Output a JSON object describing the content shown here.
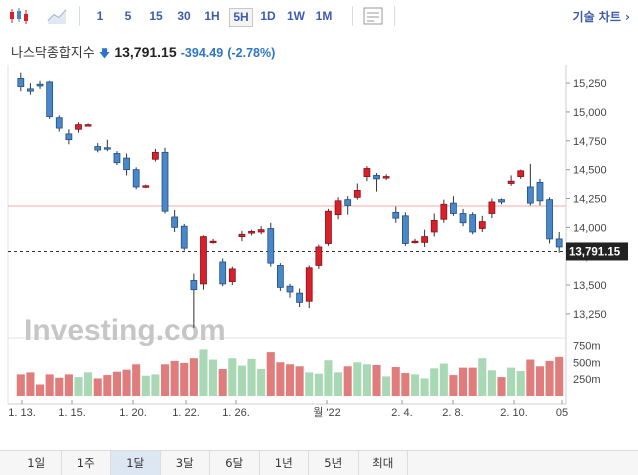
{
  "toolbar": {
    "timeframes": [
      "1",
      "5",
      "15",
      "30",
      "1H",
      "5H",
      "1D",
      "1W",
      "1M"
    ],
    "active_timeframe": "5H",
    "charts_label": "기술 차트 ›"
  },
  "header": {
    "name": "나스닥종합지수",
    "price": "13,791.15",
    "change": "-394.49",
    "change_pct": "(-2.78%)"
  },
  "watermark": "Investing.com",
  "price_axis": {
    "ticks": [
      "15,250",
      "15,000",
      "14,750",
      "14,500",
      "14,250",
      "14,000",
      "13,750",
      "13,500",
      "13,250"
    ],
    "current_label": "13,791.15"
  },
  "volume_axis": {
    "ticks": [
      "750m",
      "500m",
      "250m"
    ]
  },
  "time_axis": {
    "labels": [
      "1. 13.",
      "1. 15.",
      "1. 20.",
      "1. 22.",
      "1. 26.",
      "월 '22",
      "2. 4.",
      "2. 8.",
      "2. 10.",
      "05"
    ]
  },
  "range_buttons": {
    "labels": [
      "1일",
      "1주",
      "1달",
      "3달",
      "6달",
      "1년",
      "5년",
      "최대"
    ],
    "active": "1달"
  },
  "colors": {
    "up": "#d8202a",
    "down": "#4a87c8",
    "vol_up": "#a8d8b4",
    "vol_down": "#e07c7c",
    "accent": "#3d5cab"
  },
  "chart_data": {
    "type": "candlestick",
    "y_range": [
      13050,
      15320
    ],
    "candles": [
      [
        15290,
        15220,
        15340,
        15180
      ],
      [
        15200,
        15180,
        15250,
        15150
      ],
      [
        15240,
        15225,
        15270,
        15200
      ],
      [
        15260,
        14960,
        15270,
        14940
      ],
      [
        14950,
        14860,
        14970,
        14830
      ],
      [
        14810,
        14760,
        14850,
        14720
      ],
      [
        14850,
        14890,
        14910,
        14820
      ],
      [
        14885,
        14890,
        14900,
        14880
      ],
      [
        14700,
        14670,
        14730,
        14650
      ],
      [
        14690,
        14680,
        14760,
        14660
      ],
      [
        14640,
        14560,
        14660,
        14540
      ],
      [
        14600,
        14500,
        14640,
        14450
      ],
      [
        14500,
        14350,
        14520,
        14330
      ],
      [
        14350,
        14360,
        14370,
        14340
      ],
      [
        14590,
        14650,
        14680,
        14570
      ],
      [
        14650,
        14140,
        14690,
        14120
      ],
      [
        14090,
        14000,
        14150,
        13960
      ],
      [
        14010,
        13820,
        14030,
        13800
      ],
      [
        13540,
        13460,
        13600,
        13130
      ],
      [
        13510,
        13920,
        13930,
        13460
      ],
      [
        13880,
        13880,
        13900,
        13860
      ],
      [
        13700,
        13510,
        13730,
        13490
      ],
      [
        13530,
        13640,
        13660,
        13500
      ],
      [
        13920,
        13940,
        13970,
        13880
      ],
      [
        13950,
        13965,
        13980,
        13930
      ],
      [
        13960,
        13980,
        14010,
        13940
      ],
      [
        13990,
        13690,
        14040,
        13660
      ],
      [
        13670,
        13480,
        13690,
        13450
      ],
      [
        13490,
        13440,
        13510,
        13390
      ],
      [
        13430,
        13350,
        13470,
        13310
      ],
      [
        13360,
        13650,
        13670,
        13300
      ],
      [
        13670,
        13830,
        13850,
        13640
      ],
      [
        13860,
        14140,
        14160,
        13840
      ],
      [
        14110,
        14230,
        14260,
        14070
      ],
      [
        14240,
        14190,
        14270,
        14110
      ],
      [
        14260,
        14320,
        14380,
        14240
      ],
      [
        14440,
        14510,
        14530,
        14400
      ],
      [
        14450,
        14420,
        14470,
        14310
      ],
      [
        14430,
        14440,
        14460,
        14410
      ],
      [
        14130,
        14080,
        14180,
        14040
      ],
      [
        14100,
        13860,
        14130,
        13840
      ],
      [
        13870,
        13880,
        13900,
        13860
      ],
      [
        13870,
        13920,
        13980,
        13830
      ],
      [
        13960,
        14060,
        14120,
        13920
      ],
      [
        14070,
        14200,
        14240,
        14040
      ],
      [
        14210,
        14120,
        14270,
        14100
      ],
      [
        14120,
        14040,
        14160,
        14010
      ],
      [
        14110,
        13960,
        14130,
        13940
      ],
      [
        13990,
        14050,
        14100,
        13960
      ],
      [
        14120,
        14220,
        14250,
        14080
      ],
      [
        14240,
        14220,
        14250,
        14200
      ],
      [
        14380,
        14400,
        14450,
        14360
      ],
      [
        14440,
        14490,
        14500,
        14420
      ],
      [
        14350,
        14210,
        14550,
        14190
      ],
      [
        14390,
        14230,
        14420,
        14190
      ],
      [
        14240,
        13900,
        14260,
        13860
      ],
      [
        13900,
        13830,
        13960,
        13780
      ]
    ],
    "volume": [
      320,
      350,
      170,
      320,
      270,
      320,
      280,
      350,
      260,
      310,
      360,
      390,
      470,
      300,
      320,
      470,
      520,
      490,
      560,
      690,
      540,
      400,
      560,
      450,
      550,
      400,
      650,
      500,
      470,
      440,
      350,
      330,
      530,
      350,
      440,
      500,
      470,
      460,
      290,
      430,
      340,
      320,
      260,
      410,
      480,
      310,
      420,
      420,
      560,
      380,
      280,
      420,
      370,
      540,
      440,
      520,
      580
    ]
  }
}
